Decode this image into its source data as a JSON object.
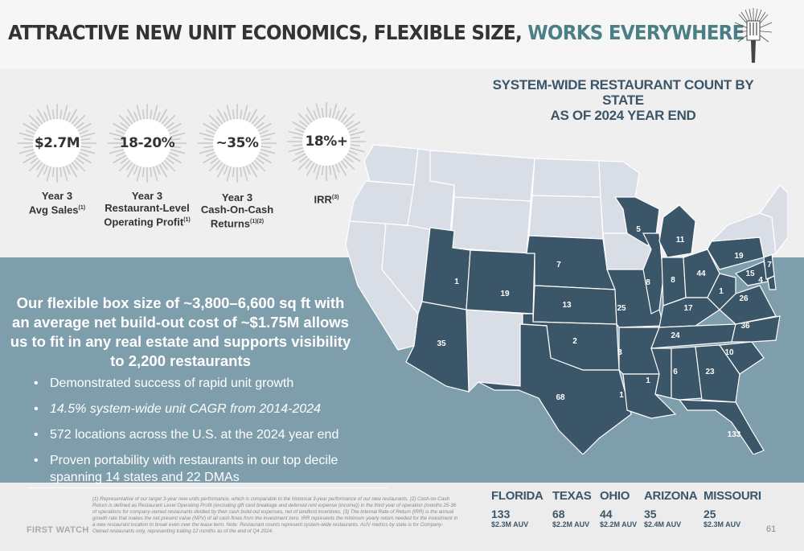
{
  "header": {
    "title_main": "ATTRACTIVE NEW UNIT ECONOMICS, FLEXIBLE SIZE, ",
    "title_accent": "WORKS EVERYWHERE"
  },
  "metrics": [
    {
      "value": "$2.7M",
      "label_line1": "Year 3",
      "label_line2": "Avg Sales",
      "note": "(1)"
    },
    {
      "value": "18-20%",
      "label_line1": "Year 3",
      "label_line2": "Restaurant-Level",
      "label_line3": "Operating Profit",
      "note": "(1)"
    },
    {
      "value": "~35%",
      "label_line1": "Year 3",
      "label_line2": "Cash-On-Cash",
      "label_line3": "Returns",
      "note": "(1)(2)"
    },
    {
      "value": "18%+",
      "label_line1": "IRR",
      "note": "(3)"
    }
  ],
  "map": {
    "title_line1": "SYSTEM-WIDE RESTAURANT COUNT BY",
    "title_line2": "STATE",
    "title_line3": "AS OF 2024 YEAR END",
    "state_counts": {
      "UT": "1",
      "CO": "19",
      "AZ": "35",
      "NE": "7",
      "KS": "13",
      "OK": "2",
      "TX": "68",
      "WI": "5",
      "MI": "11",
      "IL": "8",
      "IN": "8",
      "OH": "44",
      "PA": "19",
      "NJ": "7",
      "MD": "15",
      "DE": "4",
      "MO": "25",
      "KY": "17",
      "WV": "1",
      "VA": "26",
      "NC": "36",
      "TN": "24",
      "SC": "10",
      "AR": "3",
      "MS": "1",
      "AL": "6",
      "GA": "23",
      "LA": "1",
      "FL": "133"
    },
    "colors": {
      "served": "#3b5668",
      "not_served": "#d8dde6"
    }
  },
  "headline": "Our flexible box size of ~3,800–6,600 sq ft with an average net build-out cost of ~$1.75M allows us to fit in any real estate and supports visibility to 2,200 restaurants",
  "bullets": [
    "Demonstrated success of rapid unit growth",
    "14.5% system-wide unit CAGR from 2014-2024",
    "572 locations across the U.S. at the 2024 year end",
    "Proven portability with restaurants in our top decile spanning 14 states and 22 DMAs"
  ],
  "footnote": "(1) Representative of our target 3-year new units performance, which is comparable to the historical 3-year performance of our new restaurants. (2) Cash-on-Cash Return is defined as Restaurant Level Operating Profit (excluding gift card breakage and deferred rent expense (income)) in the third year of operation (months 25-36 of operations for company-owned restaurants divided by their cash build-out expenses, net of landlord incentives. (3) The Internal Rate of Return (IRR) is the annual growth rate that makes the net present value (NPV) of all cash flows from the investment zero. IRR represents the minimum yearly return needed for the investment in a new restaurant location to break even over the lease term. Note: Restaurant counts represent system-wide restaurants. AUV metrics by state is for Company-Owned restaurants only, representing trailing 12 months as of the end of Q4 2024.",
  "brand": "FIRST WATCH",
  "top_states": [
    {
      "name": "FLORIDA",
      "count": "133",
      "auv": "$2.3M AUV"
    },
    {
      "name": "TEXAS",
      "count": "68",
      "auv": "$2.2M AUV"
    },
    {
      "name": "OHIO",
      "count": "44",
      "auv": "$2.2M AUV"
    },
    {
      "name": "ARIZONA",
      "count": "35",
      "auv": "$2.4M AUV"
    },
    {
      "name": "MISSOURI",
      "count": "25",
      "auv": "$2.3M AUV"
    }
  ],
  "page_number": "61",
  "icons": {
    "logo": "fork-sunburst-icon",
    "badge": "sunburst-badge-icon"
  }
}
